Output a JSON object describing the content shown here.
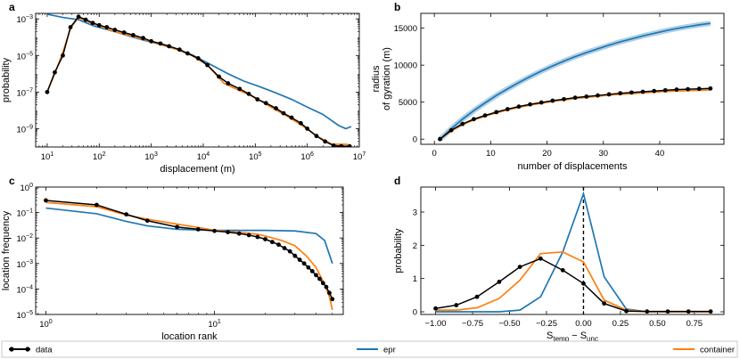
{
  "colors": {
    "data": "#000000",
    "epr": "#1f77b4",
    "container": "#ff7f0e"
  },
  "legend": {
    "data": "data",
    "epr": "epr",
    "container": "container"
  },
  "chart_data": [
    {
      "id": "a",
      "letter": "a",
      "type": "line",
      "xscale": "log",
      "yscale": "log",
      "xlabel": "displacement (m)",
      "ylabel": "probability",
      "xlim": [
        6,
        10000000
      ],
      "ylim": [
        1e-10,
        0.002
      ],
      "xticks": [
        {
          "v": 10,
          "b": "10",
          "e": "1"
        },
        {
          "v": 100,
          "b": "10",
          "e": "2"
        },
        {
          "v": 1000,
          "b": "10",
          "e": "3"
        },
        {
          "v": 10000,
          "b": "10",
          "e": "4"
        },
        {
          "v": 100000,
          "b": "10",
          "e": "5"
        },
        {
          "v": 1000000,
          "b": "10",
          "e": "6"
        },
        {
          "v": 10000000,
          "b": "10",
          "e": "7"
        }
      ],
      "yticks": [
        {
          "v": 1e-09,
          "b": "10",
          "e": "−9"
        },
        {
          "v": 1e-07,
          "b": "10",
          "e": "−7"
        },
        {
          "v": 1e-05,
          "b": "10",
          "e": "−5"
        },
        {
          "v": 0.001,
          "b": "10",
          "e": "−3"
        }
      ],
      "series": [
        {
          "name": "epr",
          "x": [
            10,
            20,
            40,
            80,
            150,
            300,
            700,
            1500,
            3000,
            6000,
            12000,
            30000,
            60000,
            120000,
            250000,
            500000,
            1000000,
            2000000,
            4000000,
            5500000,
            7000000
          ],
          "y": [
            0.0018,
            0.0012,
            0.0009,
            0.0004,
            0.00025,
            0.00014,
            7e-05,
            4e-05,
            2.2e-05,
            1.1e-05,
            4e-06,
            1e-06,
            4e-07,
            2e-07,
            9e-08,
            4e-08,
            1.5e-08,
            6e-09,
            1.5e-09,
            1e-09,
            1.3e-09
          ]
        },
        {
          "name": "container",
          "x": [
            10,
            14,
            20,
            28,
            40,
            60,
            100,
            200,
            400,
            800,
            1500,
            3000,
            6000,
            12000,
            25000,
            50000,
            100000,
            200000,
            400000,
            800000,
            1500000,
            3000000,
            6000000
          ],
          "y": [
            1.1e-07,
            1e-06,
            1.5e-05,
            0.0003,
            0.0012,
            0.0007,
            0.0004,
            0.0002,
            0.00012,
            7e-05,
            4e-05,
            2.2e-05,
            1e-05,
            3e-06,
            3e-07,
            1.2e-07,
            5e-08,
            1.5e-08,
            5e-09,
            1.5e-09,
            4e-10,
            1.4e-10,
            1.4e-10
          ]
        },
        {
          "name": "data",
          "markers": true,
          "x": [
            10,
            14,
            20,
            28,
            40,
            55,
            75,
            100,
            140,
            200,
            300,
            450,
            700,
            1000,
            1500,
            2200,
            3500,
            5000,
            8000,
            12000,
            20000,
            30000,
            50000,
            75000,
            110000,
            160000,
            250000,
            350000,
            500000,
            750000,
            1000000,
            1500000,
            2200000,
            3200000,
            4500000,
            6500000
          ],
          "y": [
            1e-07,
            1.2e-06,
            1e-05,
            0.00035,
            0.0013,
            0.0009,
            0.0006,
            0.00045,
            0.00035,
            0.00025,
            0.00018,
            0.00013,
            9e-05,
            6e-05,
            4.5e-05,
            3.2e-05,
            2.1e-05,
            1.3e-05,
            7e-06,
            3e-06,
            7e-07,
            3e-07,
            1.5e-07,
            8e-08,
            4e-08,
            2.5e-08,
            1.3e-08,
            7e-09,
            4e-09,
            2e-09,
            1e-09,
            4e-10,
            2e-10,
            1.2e-10,
            1.1e-10,
            1.1e-10
          ]
        }
      ]
    },
    {
      "id": "b",
      "letter": "b",
      "type": "line",
      "xscale": "linear",
      "yscale": "linear",
      "xlabel": "number of displacements",
      "ylabel": [
        "radius",
        "of gyration (m)"
      ],
      "xlim": [
        -2.4,
        51.4
      ],
      "ylim": [
        -700,
        17000
      ],
      "xticks": [
        {
          "v": 0,
          "t": "0"
        },
        {
          "v": 10,
          "t": "10"
        },
        {
          "v": 20,
          "t": "20"
        },
        {
          "v": 30,
          "t": "30"
        },
        {
          "v": 40,
          "t": "40"
        }
      ],
      "yticks": [
        {
          "v": 0,
          "t": "0"
        },
        {
          "v": 5000,
          "t": "5000"
        },
        {
          "v": 10000,
          "t": "10000"
        },
        {
          "v": 15000,
          "t": "15000"
        }
      ],
      "series": [
        {
          "name": "epr",
          "band": true,
          "x": [
            1,
            3,
            5,
            7,
            9,
            11,
            13,
            15,
            17,
            19,
            21,
            23,
            25,
            27,
            29,
            31,
            33,
            35,
            37,
            39,
            41,
            43,
            45,
            47,
            49
          ],
          "y": [
            0,
            1400,
            2700,
            3850,
            4900,
            5900,
            6800,
            7650,
            8450,
            9200,
            9900,
            10550,
            11150,
            11700,
            12200,
            12700,
            13150,
            13550,
            13950,
            14300,
            14650,
            14950,
            15200,
            15450,
            15650
          ]
        },
        {
          "name": "container",
          "x": [
            1,
            3,
            5,
            7,
            9,
            11,
            13,
            15,
            17,
            19,
            21,
            23,
            25,
            27,
            29,
            31,
            33,
            35,
            37,
            39,
            41,
            43,
            45,
            47,
            49
          ],
          "y": [
            0,
            1100,
            1950,
            2600,
            3100,
            3550,
            3950,
            4300,
            4600,
            4850,
            5100,
            5300,
            5500,
            5650,
            5800,
            5950,
            6050,
            6150,
            6250,
            6350,
            6450,
            6500,
            6550,
            6600,
            6650
          ]
        },
        {
          "name": "data",
          "markers": true,
          "x": [
            1,
            3,
            5,
            7,
            9,
            11,
            13,
            15,
            17,
            19,
            21,
            23,
            25,
            27,
            29,
            31,
            33,
            35,
            37,
            39,
            41,
            43,
            45,
            47,
            49
          ],
          "y": [
            0,
            1200,
            2050,
            2700,
            3200,
            3650,
            4050,
            4400,
            4700,
            4950,
            5200,
            5400,
            5600,
            5750,
            5900,
            6050,
            6200,
            6300,
            6400,
            6500,
            6600,
            6700,
            6750,
            6800,
            6850
          ]
        }
      ]
    },
    {
      "id": "c",
      "letter": "c",
      "type": "line",
      "xscale": "log",
      "yscale": "log",
      "xlabel": "location rank",
      "ylabel": "location frequency",
      "xlim": [
        0.87,
        58
      ],
      "ylim": [
        1e-05,
        1
      ],
      "xticks": [
        {
          "v": 1,
          "b": "10",
          "e": "0"
        },
        {
          "v": 10,
          "b": "10",
          "e": "1"
        }
      ],
      "yticks": [
        {
          "v": 1e-05,
          "b": "10",
          "e": "−5"
        },
        {
          "v": 0.0001,
          "b": "10",
          "e": "−4"
        },
        {
          "v": 0.001,
          "b": "10",
          "e": "−3"
        },
        {
          "v": 0.01,
          "b": "10",
          "e": "−2"
        },
        {
          "v": 0.1,
          "b": "10",
          "e": "−1"
        },
        {
          "v": 1,
          "b": "10",
          "e": "0"
        }
      ],
      "series": [
        {
          "name": "epr",
          "x": [
            1,
            2,
            3,
            4,
            6,
            10,
            15,
            20,
            30,
            40,
            45,
            50
          ],
          "y": [
            0.15,
            0.09,
            0.045,
            0.03,
            0.022,
            0.02,
            0.02,
            0.02,
            0.019,
            0.015,
            0.008,
            0.001
          ]
        },
        {
          "name": "container",
          "x": [
            1,
            2,
            3,
            4,
            6,
            8,
            10,
            12,
            15,
            18,
            20,
            25,
            30,
            35,
            40,
            45,
            48,
            50
          ],
          "y": [
            0.25,
            0.17,
            0.08,
            0.055,
            0.035,
            0.026,
            0.02,
            0.018,
            0.016,
            0.014,
            0.012,
            0.008,
            0.005,
            0.002,
            0.0007,
            0.00015,
            5e-05,
            1.5e-05
          ]
        },
        {
          "name": "data",
          "markers": true,
          "x": [
            1,
            2,
            3,
            4,
            6,
            8,
            10,
            12,
            14,
            16,
            18,
            20,
            22,
            24,
            26,
            28,
            30,
            32,
            34,
            36,
            38,
            40,
            42,
            44,
            46,
            48,
            50
          ],
          "y": [
            0.3,
            0.2,
            0.085,
            0.048,
            0.027,
            0.022,
            0.019,
            0.017,
            0.015,
            0.013,
            0.011,
            0.009,
            0.007,
            0.0055,
            0.004,
            0.003,
            0.002,
            0.0014,
            0.001,
            0.0007,
            0.0005,
            0.00035,
            0.00025,
            0.00017,
            0.00012,
            7e-05,
            4e-05
          ]
        }
      ]
    },
    {
      "id": "d",
      "letter": "d",
      "type": "line",
      "xscale": "linear",
      "yscale": "linear",
      "xlabel": "S",
      "xlabel_sub1": "temp",
      "xlabel_mid": " − S",
      "xlabel_sub2": "unc",
      "ylabel": "probability",
      "xlim": [
        -1.1,
        0.95
      ],
      "ylim": [
        -0.08,
        3.75
      ],
      "vline": 0,
      "xticks": [
        {
          "v": -1,
          "t": "−1.00"
        },
        {
          "v": -0.75,
          "t": "−0.75"
        },
        {
          "v": -0.5,
          "t": "−0.50"
        },
        {
          "v": -0.25,
          "t": "−0.25"
        },
        {
          "v": 0,
          "t": "0.00"
        },
        {
          "v": 0.25,
          "t": "0.25"
        },
        {
          "v": 0.5,
          "t": "0.50"
        },
        {
          "v": 0.75,
          "t": "0.75"
        }
      ],
      "yticks": [
        {
          "v": 0,
          "t": "0"
        },
        {
          "v": 1,
          "t": "1"
        },
        {
          "v": 2,
          "t": "2"
        },
        {
          "v": 3,
          "t": "3"
        }
      ],
      "series": [
        {
          "name": "epr",
          "x": [
            -1,
            -0.86,
            -0.72,
            -0.57,
            -0.43,
            -0.29,
            -0.14,
            0,
            0.14,
            0.29,
            0.43,
            0.57,
            0.71,
            0.86
          ],
          "y": [
            0,
            0,
            0,
            0,
            0.05,
            0.45,
            1.8,
            3.55,
            1.05,
            0.08,
            0,
            0,
            0,
            0
          ]
        },
        {
          "name": "container",
          "x": [
            -1,
            -0.86,
            -0.72,
            -0.57,
            -0.43,
            -0.29,
            -0.14,
            0,
            0.14,
            0.29,
            0.43,
            0.57,
            0.71,
            0.86
          ],
          "y": [
            0.05,
            0.05,
            0.12,
            0.4,
            0.95,
            1.75,
            1.8,
            1.5,
            0.35,
            0.05,
            0,
            0,
            0,
            0
          ]
        },
        {
          "name": "data",
          "markers": true,
          "x": [
            -1,
            -0.86,
            -0.72,
            -0.57,
            -0.43,
            -0.29,
            -0.14,
            0,
            0.14,
            0.29,
            0.43,
            0.57,
            0.71,
            0.86
          ],
          "y": [
            0.1,
            0.2,
            0.45,
            0.9,
            1.35,
            1.6,
            1.25,
            0.85,
            0.25,
            0.02,
            0.01,
            0.01,
            0.01,
            0.01
          ]
        }
      ]
    }
  ]
}
